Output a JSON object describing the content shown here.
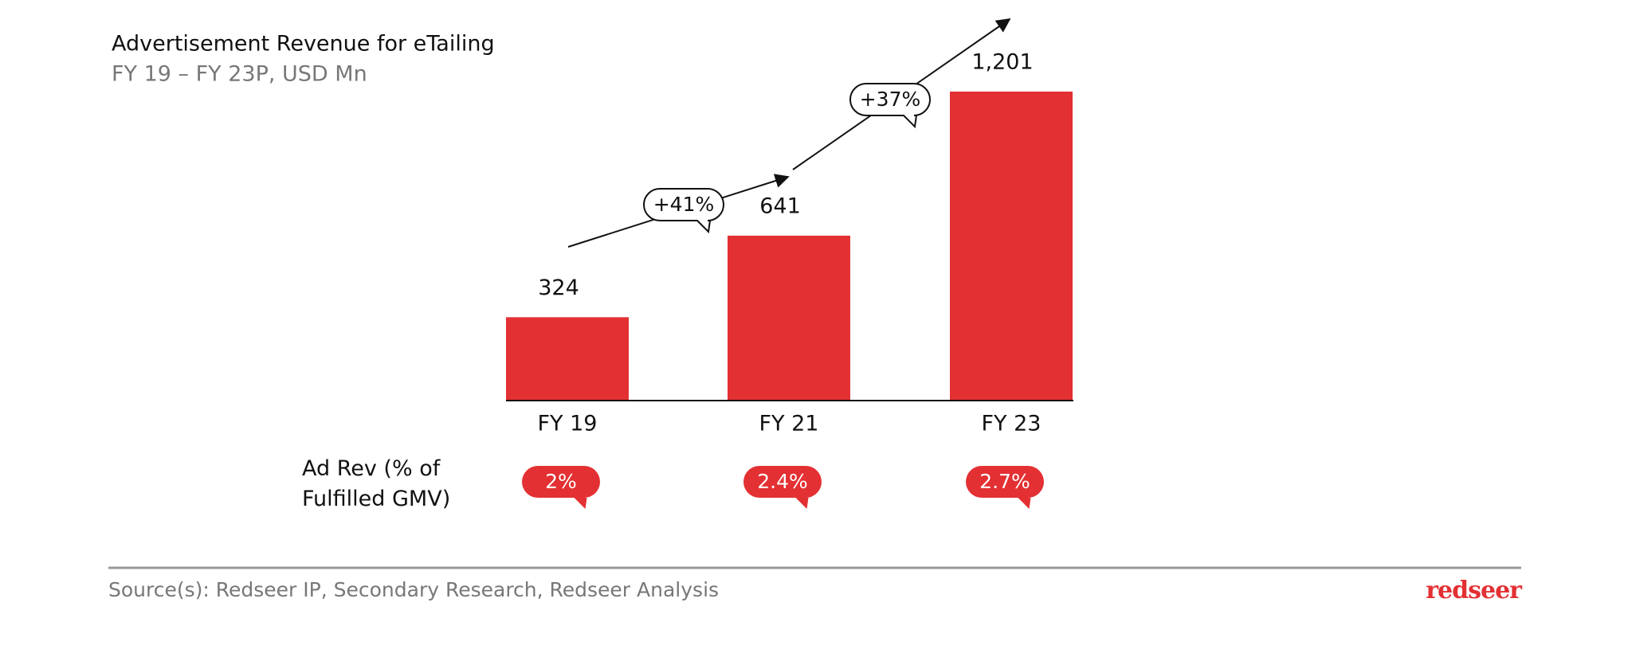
{
  "chart_data": {
    "type": "bar",
    "title": "Advertisement Revenue for eTailing",
    "subtitle": "FY 19 – FY 23P, USD Mn",
    "categories": [
      "FY 19",
      "FY 21",
      "FY 23"
    ],
    "values": [
      324,
      641,
      1201
    ],
    "value_labels": [
      "324",
      "641",
      "1,201"
    ],
    "color": "#e33033",
    "annotations": [
      "+41%",
      "+37%"
    ],
    "ad_rev": {
      "label": "Ad Rev (% of Fulfilled GMV)",
      "values": [
        2,
        2.4,
        2.7
      ],
      "value_labels": [
        "2%",
        "2.4%",
        "2.7%"
      ]
    }
  },
  "footer": {
    "source": "Source(s): Redseer IP, Secondary Research, Redseer Analysis",
    "logo": "redseer"
  }
}
